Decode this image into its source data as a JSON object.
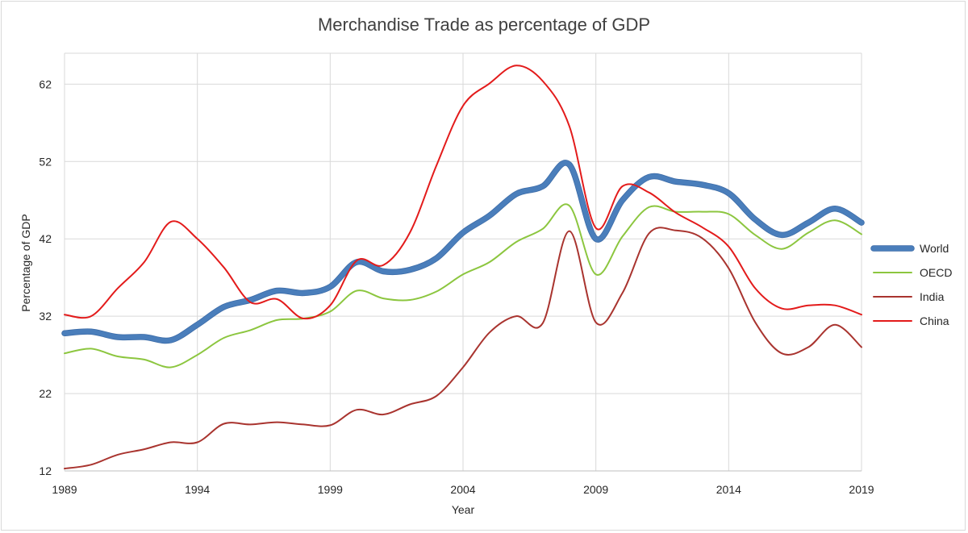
{
  "chart_data": {
    "type": "line",
    "title": "Merchandise Trade as percentage of GDP",
    "xlabel": "Year",
    "ylabel": "Percentage of GDP",
    "xlim": [
      1989,
      2019
    ],
    "ylim": [
      12,
      66
    ],
    "x_ticks": [
      1989,
      1994,
      1999,
      2004,
      2009,
      2014,
      2019
    ],
    "y_ticks": [
      12,
      22,
      32,
      42,
      52,
      62
    ],
    "grid": true,
    "legend_position": "right",
    "x": [
      1989,
      1990,
      1991,
      1992,
      1993,
      1994,
      1995,
      1996,
      1997,
      1998,
      1999,
      2000,
      2001,
      2002,
      2003,
      2004,
      2005,
      2006,
      2007,
      2008,
      2009,
      2010,
      2011,
      2012,
      2013,
      2014,
      2015,
      2016,
      2017,
      2018,
      2019
    ],
    "series": [
      {
        "name": "World",
        "color": "#4a7ebb",
        "width": 6,
        "values": [
          29.8,
          30.0,
          29.3,
          29.3,
          28.9,
          30.9,
          33.2,
          34.1,
          35.3,
          35.0,
          35.8,
          39.0,
          37.8,
          38.0,
          39.5,
          42.8,
          45.0,
          47.8,
          48.8,
          51.6,
          42.0,
          47.0,
          50.0,
          49.4,
          49.0,
          47.9,
          44.5,
          42.5,
          44.1,
          45.9,
          44.1
        ]
      },
      {
        "name": "OECD",
        "color": "#8cc63f",
        "width": 2,
        "values": [
          27.2,
          27.8,
          26.8,
          26.4,
          25.4,
          27.0,
          29.2,
          30.2,
          31.5,
          31.7,
          32.6,
          35.3,
          34.3,
          34.1,
          35.2,
          37.4,
          39.0,
          41.6,
          43.3,
          46.3,
          37.4,
          42.3,
          46.1,
          45.5,
          45.5,
          45.2,
          42.5,
          40.7,
          42.8,
          44.4,
          42.6
        ]
      },
      {
        "name": "India",
        "color": "#a9342f",
        "width": 2,
        "values": [
          12.3,
          12.8,
          14.1,
          14.8,
          15.7,
          15.7,
          18.1,
          18.0,
          18.3,
          18.0,
          17.9,
          19.9,
          19.3,
          20.6,
          21.7,
          25.4,
          29.9,
          32.0,
          31.1,
          43.0,
          31.2,
          35.0,
          42.7,
          43.1,
          42.1,
          38.2,
          31.2,
          27.2,
          28.0,
          30.9,
          28.0
        ]
      },
      {
        "name": "China",
        "color": "#e31b1b",
        "width": 2,
        "values": [
          32.2,
          32.0,
          35.6,
          39.0,
          44.2,
          42.0,
          38.3,
          33.8,
          34.2,
          31.7,
          33.4,
          39.2,
          38.6,
          42.8,
          51.5,
          59.2,
          62.1,
          64.4,
          62.4,
          56.6,
          43.4,
          48.8,
          48.0,
          45.4,
          43.5,
          41.0,
          35.6,
          33.0,
          33.4,
          33.4,
          32.2
        ]
      }
    ]
  }
}
